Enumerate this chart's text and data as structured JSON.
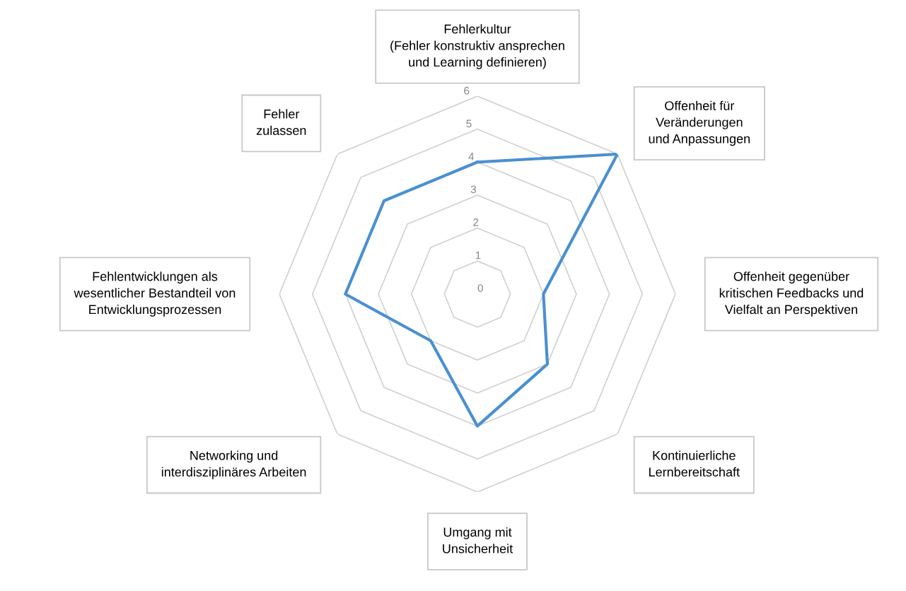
{
  "chart_data": {
    "type": "radar",
    "categories": [
      "Fehlerkultur\n(Fehler konstruktiv ansprechen\nund Learning definieren)",
      "Offenheit für\nVeränderungen\nund Anpassungen",
      "Offenheit gegenüber\nkritischen Feedbacks und\nVielfalt an Perspektiven",
      "Kontinuierliche\nLernbereitschaft",
      "Umgang mit\nUnsicherheit",
      "Networking und\ninterdisziplinäres Arbeiten",
      "Fehlentwicklungen als\nwesentlicher Bestandteil von\nEntwicklungsprozessen",
      "Fehler\nzulassen"
    ],
    "series": [
      {
        "color": "#4a90d0",
        "values": [
          4,
          6,
          2,
          3,
          4,
          2,
          4,
          4
        ]
      }
    ],
    "ylim": [
      0,
      6
    ],
    "yticks": [
      0,
      1,
      2,
      3,
      4,
      5,
      6
    ],
    "grid": true,
    "marker": "none"
  }
}
